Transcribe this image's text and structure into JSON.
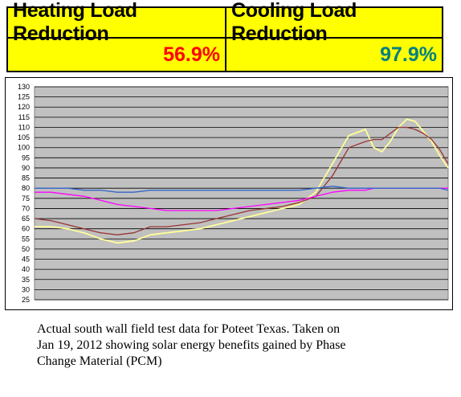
{
  "kpis": {
    "heating_label": "Heating Load Reduction",
    "cooling_label": "Cooling Load Reduction",
    "heating_value": "56.9%",
    "cooling_value": "97.9%",
    "heating_color": "#ff0000",
    "cooling_color": "#008080",
    "background": "#ffff00"
  },
  "caption": {
    "line1": "Actual south wall field test data for Poteet Texas. Taken on",
    "line2": "Jan 19, 2012 showing solar energy benefits gained by Phase",
    "line3": "Change Material (PCM)"
  },
  "chart_data": {
    "type": "line",
    "title": "",
    "xlabel": "",
    "ylabel": "",
    "ylim": [
      25,
      130
    ],
    "yticks": [
      "130",
      "125",
      "120",
      "115",
      "110",
      "105",
      "100",
      "95",
      "90",
      "85",
      "80",
      "75",
      "70",
      "65",
      "60",
      "55",
      "50",
      "45",
      "40",
      "35",
      "30",
      "25"
    ],
    "grid": true,
    "plot_background": "#c0c0c0",
    "x": [
      0,
      4,
      8,
      12,
      16,
      20,
      24,
      28,
      32,
      36,
      40,
      44,
      48,
      52,
      56,
      60,
      64,
      68,
      72,
      76,
      80,
      82,
      84,
      86,
      88,
      90,
      92,
      94,
      96,
      98,
      100
    ],
    "series": [
      {
        "color": "#ffff99",
        "values": [
          61,
          61,
          60,
          58,
          55,
          53,
          54,
          57,
          58,
          59,
          60,
          62,
          64,
          66,
          68,
          70,
          72,
          78,
          92,
          106,
          109,
          100,
          98,
          103,
          110,
          114,
          113,
          108,
          103,
          96,
          90
        ]
      },
      {
        "color": "#993333",
        "values": [
          65,
          64,
          62,
          60,
          58,
          57,
          58,
          61,
          61,
          62,
          63,
          65,
          67,
          69,
          70,
          71,
          73,
          76,
          86,
          100,
          103,
          104,
          104,
          107,
          110,
          110,
          109,
          107,
          104,
          99,
          92
        ]
      },
      {
        "color": "#ff00ff",
        "values": [
          78,
          78,
          77,
          76,
          74,
          72,
          71,
          70,
          69,
          69,
          69,
          69,
          70,
          71,
          72,
          73,
          74,
          76,
          78,
          79,
          79,
          80,
          80,
          80,
          80,
          80,
          80,
          80,
          80,
          80,
          80
        ]
      },
      {
        "color": "#3366cc",
        "values": [
          80,
          80,
          80,
          79,
          79,
          78,
          78,
          79,
          79,
          79,
          79,
          79,
          79,
          79,
          79,
          79,
          79,
          80,
          81,
          80,
          80,
          80,
          80,
          80,
          80,
          80,
          80,
          80,
          80,
          80,
          79
        ]
      }
    ]
  }
}
